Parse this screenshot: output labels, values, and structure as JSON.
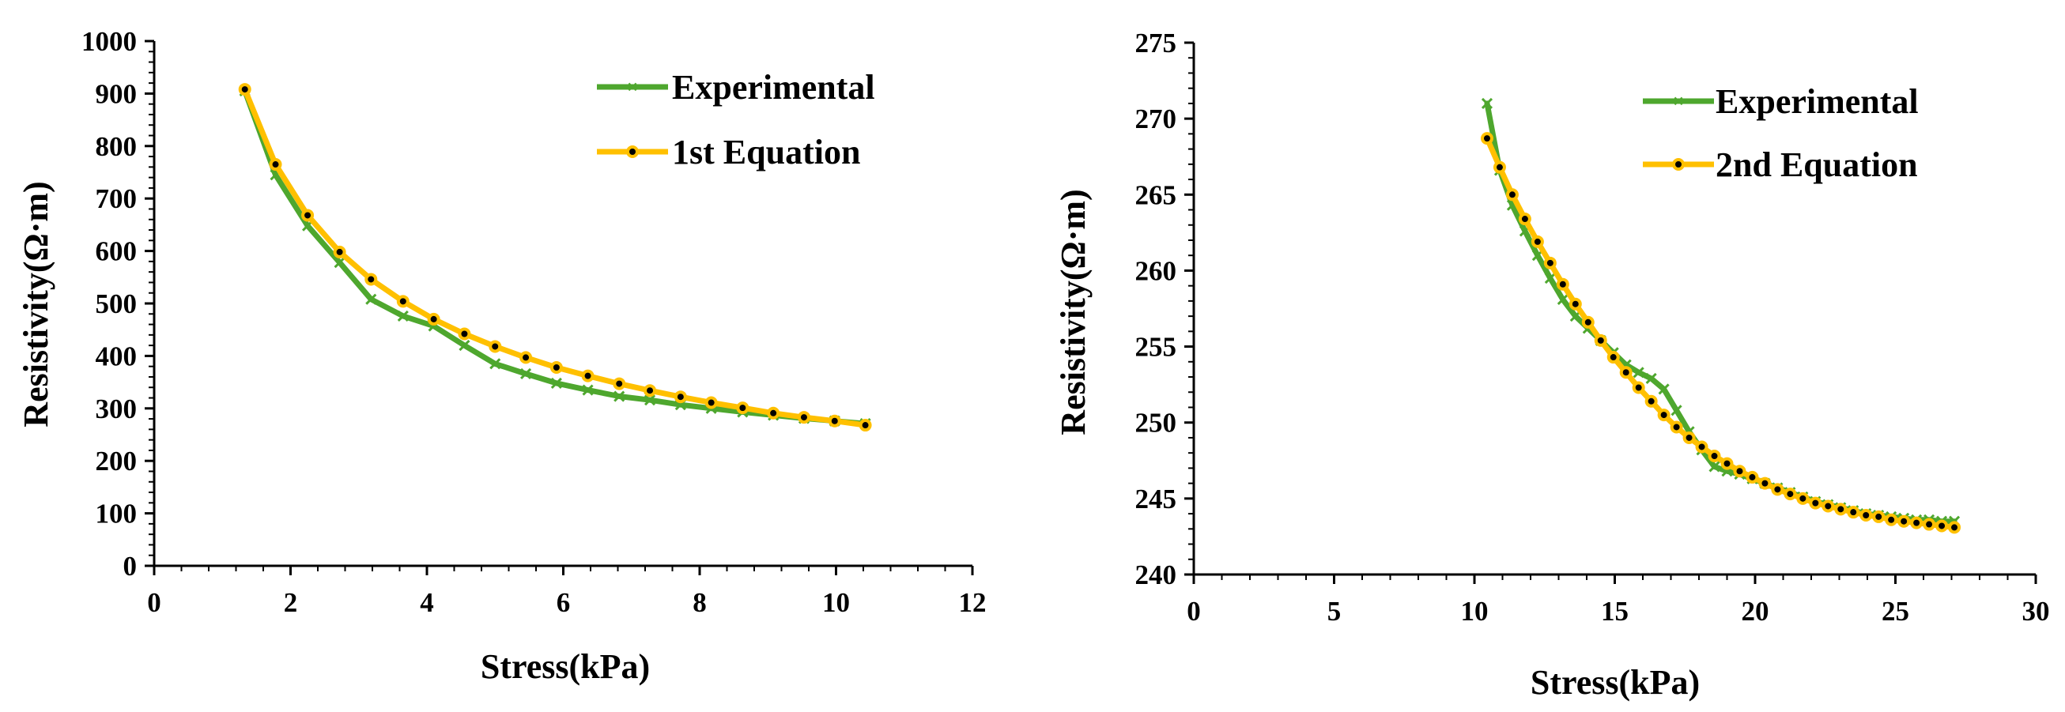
{
  "colors": {
    "experimental": "#4ea72e",
    "equation": "#ffc000",
    "equation_marker_center": "#000000",
    "axis": "#000000"
  },
  "chart_data": [
    {
      "type": "line",
      "xlabel": "Stress(kPa)",
      "ylabel": "Resistivity(Ω·m)",
      "xlim": [
        0,
        12
      ],
      "ylim": [
        0,
        1000
      ],
      "xticks": [
        0,
        2,
        4,
        6,
        8,
        10,
        12
      ],
      "yticks": [
        0,
        100,
        200,
        300,
        400,
        500,
        600,
        700,
        800,
        900,
        1000
      ],
      "x_minor_step": 0.4,
      "y_minor_step": 20,
      "grid": false,
      "legend_position": "top-right",
      "series": [
        {
          "name": "Experimental",
          "color": "#4ea72e",
          "marker": "x",
          "x": [
            1.33,
            1.78,
            2.25,
            2.72,
            3.18,
            3.65,
            4.1,
            4.55,
            5.0,
            5.45,
            5.9,
            6.36,
            6.82,
            7.27,
            7.72,
            8.17,
            8.63,
            9.08,
            9.53,
            9.98,
            10.43
          ],
          "y": [
            905,
            745,
            648,
            578,
            508,
            476,
            457,
            420,
            385,
            366,
            348,
            335,
            323,
            316,
            307,
            300,
            293,
            287,
            281,
            276,
            271
          ]
        },
        {
          "name": "1st Equation",
          "color": "#ffc000",
          "marker": "circle",
          "x": [
            1.33,
            1.78,
            2.25,
            2.72,
            3.18,
            3.65,
            4.1,
            4.55,
            5.0,
            5.45,
            5.9,
            6.36,
            6.82,
            7.27,
            7.72,
            8.17,
            8.63,
            9.08,
            9.53,
            9.98,
            10.43
          ],
          "y": [
            908,
            765,
            668,
            598,
            546,
            504,
            470,
            442,
            418,
            397,
            378,
            362,
            347,
            334,
            322,
            311,
            301,
            291,
            283,
            276,
            268
          ]
        }
      ]
    },
    {
      "type": "line",
      "xlabel": "Stress(kPa)",
      "ylabel": "Resistivity(Ω·m)",
      "xlim": [
        0,
        30
      ],
      "ylim": [
        240,
        275
      ],
      "xticks": [
        0,
        5,
        10,
        15,
        20,
        25,
        30
      ],
      "yticks": [
        240,
        245,
        250,
        255,
        260,
        265,
        270,
        275
      ],
      "x_minor_step": 1,
      "y_minor_step": 1,
      "grid": false,
      "legend_position": "top-right",
      "series": [
        {
          "name": "Experimental",
          "color": "#4ea72e",
          "marker": "x",
          "x": [
            10.45,
            10.9,
            11.35,
            11.8,
            12.25,
            12.7,
            13.15,
            13.6,
            14.05,
            14.5,
            14.95,
            15.4,
            15.85,
            16.3,
            16.75,
            17.2,
            17.65,
            18.1,
            18.55,
            19.0,
            19.45,
            19.9,
            20.35,
            20.8,
            21.25,
            21.7,
            22.15,
            22.6,
            23.05,
            23.5,
            23.95,
            24.4,
            24.85,
            25.3,
            25.75,
            26.2,
            26.65,
            27.1
          ],
          "y": [
            271.0,
            266.6,
            264.3,
            262.6,
            261.0,
            259.5,
            258.1,
            257.0,
            256.2,
            255.4,
            254.6,
            253.8,
            253.3,
            252.9,
            252.2,
            250.8,
            249.4,
            248.2,
            247.1,
            246.8,
            246.6,
            246.3,
            246.0,
            245.7,
            245.4,
            245.1,
            244.8,
            244.6,
            244.4,
            244.2,
            244.0,
            243.9,
            243.8,
            243.7,
            243.6,
            243.6,
            243.5,
            243.5
          ]
        },
        {
          "name": "2nd Equation",
          "color": "#ffc000",
          "marker": "circle",
          "x": [
            10.45,
            10.9,
            11.35,
            11.8,
            12.25,
            12.7,
            13.15,
            13.6,
            14.05,
            14.5,
            14.95,
            15.4,
            15.85,
            16.3,
            16.75,
            17.2,
            17.65,
            18.1,
            18.55,
            19.0,
            19.45,
            19.9,
            20.35,
            20.8,
            21.25,
            21.7,
            22.15,
            22.6,
            23.05,
            23.5,
            23.95,
            24.4,
            24.85,
            25.3,
            25.75,
            26.2,
            26.65,
            27.1
          ],
          "y": [
            268.7,
            266.8,
            265.0,
            263.4,
            261.9,
            260.5,
            259.1,
            257.8,
            256.6,
            255.4,
            254.3,
            253.3,
            252.3,
            251.4,
            250.5,
            249.7,
            249.0,
            248.4,
            247.8,
            247.3,
            246.8,
            246.4,
            246.0,
            245.6,
            245.3,
            245.0,
            244.7,
            244.5,
            244.3,
            244.1,
            243.9,
            243.8,
            243.6,
            243.5,
            243.4,
            243.3,
            243.2,
            243.1
          ]
        }
      ]
    }
  ]
}
